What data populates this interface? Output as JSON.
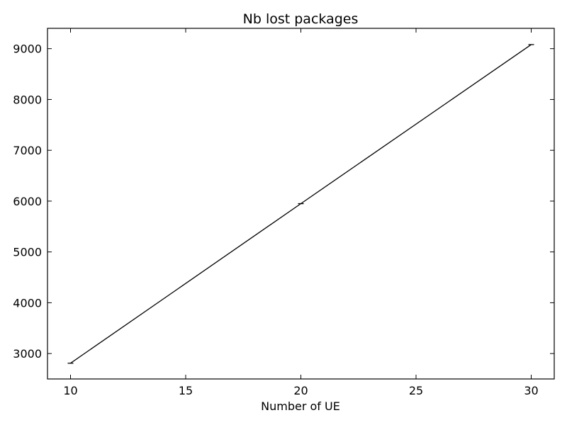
{
  "chart_data": {
    "type": "line",
    "title": "Nb lost packages",
    "xlabel": "Number of UE",
    "ylabel": "",
    "xlim": [
      9,
      31
    ],
    "ylim": [
      2500,
      9400
    ],
    "xticks": [
      10,
      15,
      20,
      25,
      30
    ],
    "yticks": [
      3000,
      4000,
      5000,
      6000,
      7000,
      8000,
      9000
    ],
    "grid": false,
    "legend": "none",
    "series": [
      {
        "x": [
          10,
          20,
          30
        ],
        "y": [
          2810,
          5950,
          9080
        ],
        "error_bar": true,
        "color": "#000000"
      }
    ]
  }
}
